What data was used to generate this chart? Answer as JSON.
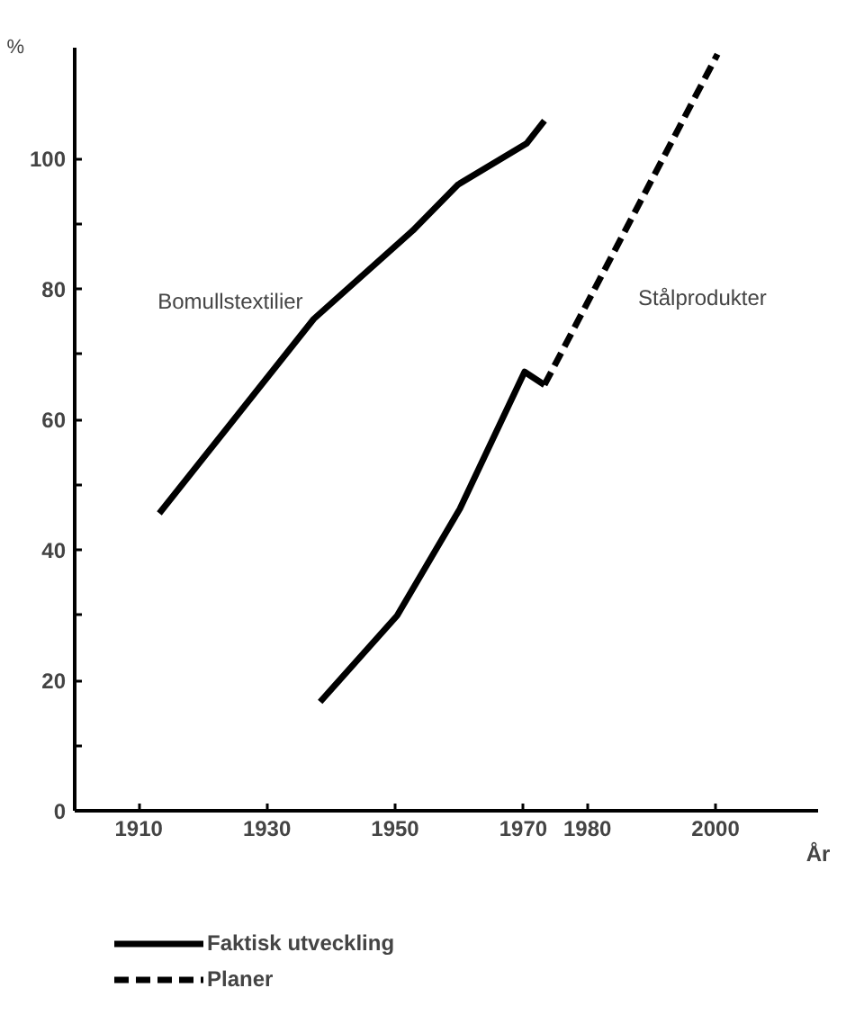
{
  "chart_data": {
    "type": "line",
    "xlabel": "År",
    "ylabel": "%",
    "xlim": [
      1900,
      2016
    ],
    "ylim": [
      0,
      117
    ],
    "xticks": [
      1910,
      1930,
      1950,
      1970,
      1980,
      2000
    ],
    "yticks": [
      0,
      {
        "value": 10,
        "label": null
      },
      20,
      {
        "value": 30,
        "label": null
      },
      40,
      {
        "value": 50,
        "label": null
      },
      60,
      {
        "value": 70,
        "label": null
      },
      80,
      {
        "value": 90,
        "label": null
      },
      100
    ],
    "grid": false,
    "legend": "bottom",
    "marker": "none",
    "series": [
      {
        "name": "Faktisk utveckling",
        "color": "#000000",
        "line_style": "solid",
        "x": [
          1913.2,
          1937.3,
          1952.8,
          1959.8,
          1970.5,
          1973.3
        ],
        "values": [
          45.6,
          75.4,
          89,
          96,
          102.3,
          105.8
        ]
      },
      {
        "color": "#000000",
        "line_style": "solid",
        "x": [
          1938.3,
          1950.3,
          1960.1,
          1970.2,
          1973.3
        ],
        "values": [
          16.7,
          29.9,
          46.3,
          67.3,
          65.3
        ]
      },
      {
        "name": "Planer",
        "color": "#000000",
        "line_style": "dashed",
        "x": [
          1973.3,
          2000.3
        ],
        "values": [
          65.3,
          116
        ]
      }
    ],
    "annotations": [
      "Bomullstextilier",
      "Stålprodukter"
    ]
  }
}
